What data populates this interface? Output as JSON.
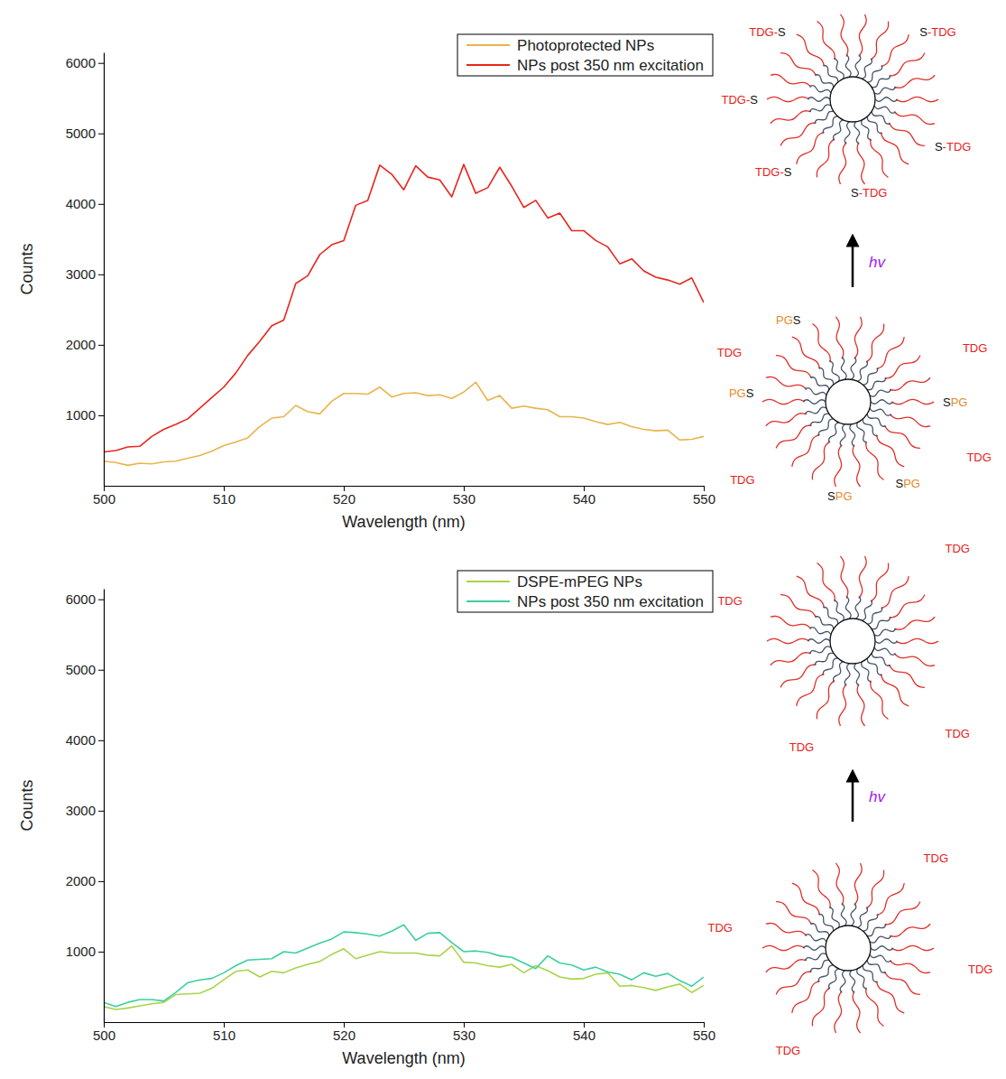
{
  "chart_data": [
    {
      "type": "line",
      "xlabel": "Wavelength (nm)",
      "ylabel": "Counts",
      "x": [
        500,
        501,
        502,
        503,
        504,
        505,
        506,
        507,
        508,
        509,
        510,
        511,
        512,
        513,
        514,
        515,
        516,
        517,
        518,
        519,
        520,
        521,
        522,
        523,
        524,
        525,
        526,
        527,
        528,
        529,
        530,
        531,
        532,
        533,
        534,
        535,
        536,
        537,
        538,
        539,
        540,
        541,
        542,
        543,
        544,
        545,
        546,
        547,
        548,
        549,
        550
      ],
      "xlim": [
        500,
        550
      ],
      "xticks": [
        500,
        510,
        520,
        530,
        540,
        550
      ],
      "ylim": [
        0,
        6150
      ],
      "yticks": [
        1000,
        2000,
        3000,
        4000,
        5000,
        6000
      ],
      "legend": "top-right",
      "series": [
        {
          "name": "Photoprotected NPs",
          "color": "#e8b54d",
          "values": [
            350,
            330,
            290,
            320,
            310,
            340,
            350,
            390,
            430,
            490,
            570,
            620,
            680,
            840,
            960,
            980,
            1140,
            1050,
            1020,
            1200,
            1310,
            1310,
            1300,
            1400,
            1260,
            1310,
            1320,
            1280,
            1290,
            1240,
            1330,
            1470,
            1210,
            1280,
            1100,
            1130,
            1100,
            1080,
            980,
            980,
            960,
            910,
            870,
            900,
            840,
            800,
            780,
            790,
            650,
            660,
            700
          ]
        },
        {
          "name": "NPs post 350 nm excitation",
          "color": "#e8261e",
          "values": [
            480,
            500,
            550,
            560,
            700,
            800,
            870,
            950,
            1100,
            1250,
            1400,
            1600,
            1850,
            2050,
            2270,
            2350,
            2870,
            2980,
            3280,
            3420,
            3480,
            3980,
            4050,
            4550,
            4420,
            4200,
            4540,
            4380,
            4340,
            4100,
            4560,
            4150,
            4230,
            4520,
            4250,
            3950,
            4050,
            3800,
            3870,
            3620,
            3620,
            3480,
            3390,
            3150,
            3220,
            3050,
            2960,
            2920,
            2860,
            2950,
            2600
          ]
        }
      ]
    },
    {
      "type": "line",
      "xlabel": "Wavelength (nm)",
      "ylabel": "Counts",
      "x": [
        500,
        501,
        502,
        503,
        504,
        505,
        506,
        507,
        508,
        509,
        510,
        511,
        512,
        513,
        514,
        515,
        516,
        517,
        518,
        519,
        520,
        521,
        522,
        523,
        524,
        525,
        526,
        527,
        528,
        529,
        530,
        531,
        532,
        533,
        534,
        535,
        536,
        537,
        538,
        539,
        540,
        541,
        542,
        543,
        544,
        545,
        546,
        547,
        548,
        549,
        550
      ],
      "xlim": [
        500,
        550
      ],
      "xticks": [
        500,
        510,
        520,
        530,
        540,
        550
      ],
      "ylim": [
        0,
        6150
      ],
      "yticks": [
        1000,
        2000,
        3000,
        4000,
        5000,
        6000
      ],
      "legend": "top-right",
      "series": [
        {
          "name": "DSPE-mPEG NPs",
          "color": "#a8d44a",
          "values": [
            220,
            180,
            200,
            230,
            260,
            280,
            390,
            400,
            410,
            480,
            600,
            720,
            740,
            640,
            720,
            700,
            770,
            820,
            860,
            960,
            1040,
            900,
            950,
            1000,
            980,
            980,
            980,
            950,
            940,
            1080,
            850,
            840,
            800,
            780,
            820,
            700,
            800,
            730,
            640,
            610,
            620,
            680,
            700,
            510,
            520,
            490,
            450,
            500,
            540,
            420,
            520
          ]
        },
        {
          "name": "NPs post 350 nm excitation",
          "color": "#3ccfa0",
          "values": [
            280,
            220,
            280,
            320,
            320,
            300,
            420,
            560,
            600,
            620,
            700,
            800,
            880,
            890,
            900,
            1000,
            980,
            1050,
            1120,
            1180,
            1280,
            1270,
            1250,
            1220,
            1290,
            1380,
            1160,
            1260,
            1270,
            1130,
            1000,
            1010,
            990,
            940,
            920,
            840,
            760,
            940,
            840,
            810,
            740,
            780,
            710,
            680,
            600,
            700,
            650,
            690,
            590,
            510,
            640
          ]
        }
      ]
    }
  ],
  "diagram": {
    "particles": [
      {
        "labels": [
          "TDG-S",
          "S-TDG",
          "TDG-S",
          "S-TDG",
          "S-TDG",
          "TDG-S"
        ]
      },
      {
        "labels": [
          "TDG",
          "PGS",
          "TDG",
          "PGS",
          "SPG",
          "TDG",
          "SPG",
          "SPG",
          "TDG"
        ]
      },
      {
        "labels": [
          "TDG",
          "TDG",
          "TDG",
          "TDG"
        ]
      },
      {
        "labels": [
          "TDG",
          "TDG",
          "TDG",
          "TDG"
        ]
      }
    ],
    "arrows": [
      {
        "label": "hv"
      },
      {
        "label": "hv"
      }
    ]
  }
}
